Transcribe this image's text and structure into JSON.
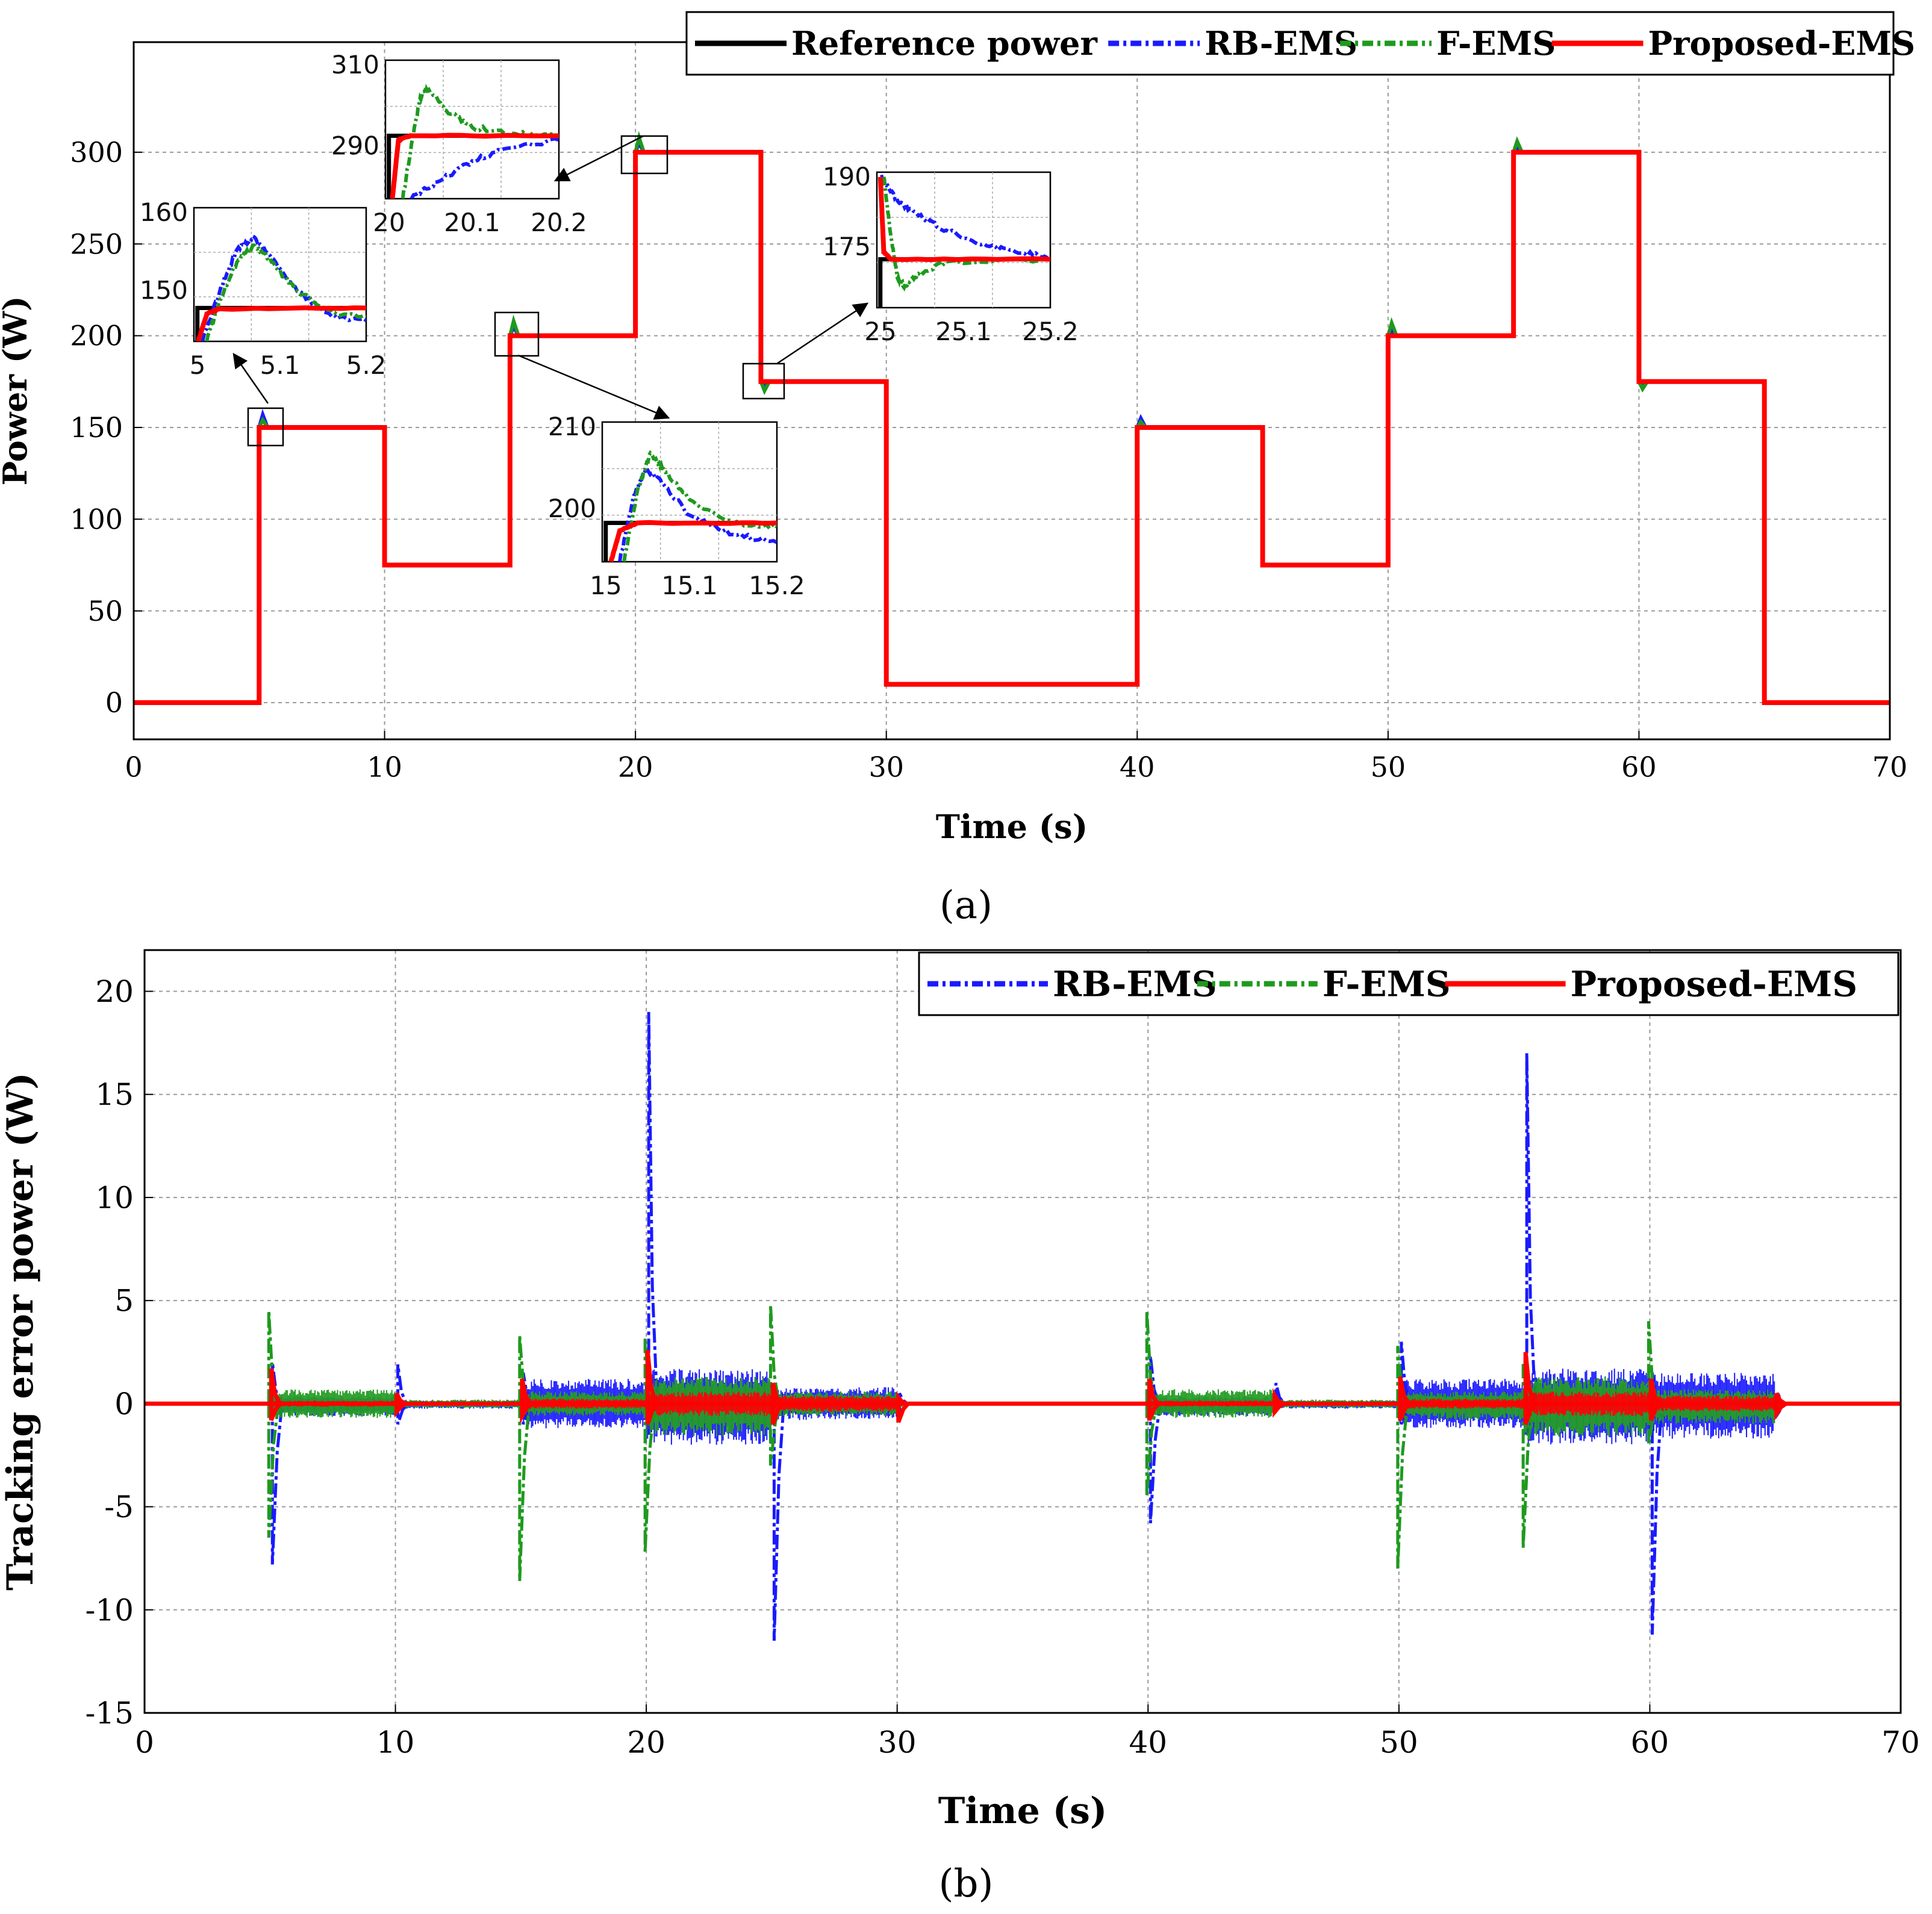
{
  "chart_data": [
    {
      "panel": "a",
      "type": "line",
      "caption": "(a)",
      "xlabel": "Time (s)",
      "ylabel": "Power (W)",
      "xlim": [
        0,
        70
      ],
      "ylim": [
        -20,
        360
      ],
      "xticks": [
        0,
        10,
        20,
        30,
        40,
        50,
        60,
        70
      ],
      "yticks": [
        0,
        50,
        100,
        150,
        200,
        250,
        300
      ],
      "grid": true,
      "legend_position": "top-right",
      "reference": {
        "name": "Reference power",
        "color": "#000000",
        "steps": [
          [
            0,
            0
          ],
          [
            5,
            150
          ],
          [
            10,
            75
          ],
          [
            15,
            200
          ],
          [
            20,
            300
          ],
          [
            25,
            175
          ],
          [
            30,
            10
          ],
          [
            40,
            150
          ],
          [
            45,
            75
          ],
          [
            50,
            200
          ],
          [
            55,
            300
          ],
          [
            60,
            175
          ],
          [
            65,
            0
          ],
          [
            70,
            0
          ]
        ]
      },
      "series": [
        {
          "name": "RB-EMS",
          "color": "#1a1aff",
          "style": "dash-dot",
          "overshoots": [
            [
              5,
              157
            ],
            [
              15,
              205
            ],
            [
              20,
              305
            ],
            [
              25,
              172
            ],
            [
              40,
              155
            ],
            [
              50,
              203
            ],
            [
              55,
              302
            ],
            [
              60,
              172
            ]
          ]
        },
        {
          "name": "F-EMS",
          "color": "#1e9a1e",
          "style": "dash-dot",
          "overshoots": [
            [
              5,
              154
            ],
            [
              15,
              208
            ],
            [
              20,
              308
            ],
            [
              25,
              170
            ],
            [
              40,
              153
            ],
            [
              50,
              207
            ],
            [
              55,
              306
            ],
            [
              60,
              171
            ]
          ]
        },
        {
          "name": "Proposed-EMS",
          "color": "#ff0000",
          "style": "solid"
        }
      ],
      "insets": [
        {
          "name": "zoom-5s",
          "xticks": [
            "5",
            "5.1",
            "5.2"
          ],
          "yticks": [
            "160",
            "150"
          ],
          "xlim": [
            5,
            5.2
          ],
          "ylim": [
            146,
            162
          ],
          "ref": 150,
          "rb": [
            [
              5.01,
              146
            ],
            [
              5.03,
              152
            ],
            [
              5.05,
              157
            ],
            [
              5.07,
              158.5
            ],
            [
              5.09,
              156
            ],
            [
              5.12,
              152
            ],
            [
              5.16,
              149
            ],
            [
              5.2,
              148.5
            ]
          ],
          "f": [
            [
              5.015,
              146
            ],
            [
              5.03,
              151
            ],
            [
              5.05,
              155.5
            ],
            [
              5.07,
              157.5
            ],
            [
              5.09,
              155.5
            ],
            [
              5.12,
              152
            ],
            [
              5.16,
              149.5
            ],
            [
              5.2,
              149
            ]
          ],
          "prop": [
            [
              5.005,
              146
            ],
            [
              5.015,
              149.3
            ],
            [
              5.03,
              149.9
            ],
            [
              5.2,
              150
            ]
          ]
        },
        {
          "name": "zoom-20s",
          "xticks": [
            "20",
            "20.1",
            "20.2"
          ],
          "yticks": [
            "310",
            "290"
          ],
          "xlim": [
            20,
            20.2
          ],
          "ylim": [
            285,
            318
          ],
          "ref": 300,
          "rb": [
            [
              20.03,
              285
            ],
            [
              20.06,
              289
            ],
            [
              20.1,
              294
            ],
            [
              20.14,
              297
            ],
            [
              20.2,
              299
            ]
          ],
          "f": [
            [
              20.02,
              285
            ],
            [
              20.03,
              298
            ],
            [
              20.04,
              309
            ],
            [
              20.05,
              311
            ],
            [
              20.07,
              306
            ],
            [
              20.1,
              302
            ],
            [
              20.15,
              300.5
            ],
            [
              20.2,
              300
            ]
          ],
          "prop": [
            [
              20.008,
              285
            ],
            [
              20.015,
              299
            ],
            [
              20.03,
              300
            ],
            [
              20.2,
              300
            ]
          ]
        },
        {
          "name": "zoom-15s",
          "xticks": [
            "15",
            "15.1",
            "15.2"
          ],
          "yticks": [
            "210",
            "200"
          ],
          "xlim": [
            15,
            15.2
          ],
          "ylim": [
            195,
            213
          ],
          "ref": 200,
          "rb": [
            [
              15.02,
              195
            ],
            [
              15.035,
              203
            ],
            [
              15.05,
              207
            ],
            [
              15.07,
              205
            ],
            [
              15.1,
              201
            ],
            [
              15.15,
              198.5
            ],
            [
              15.2,
              197.5
            ]
          ],
          "f": [
            [
              15.025,
              195
            ],
            [
              15.04,
              204
            ],
            [
              15.055,
              209
            ],
            [
              15.07,
              207
            ],
            [
              15.1,
              203
            ],
            [
              15.15,
              200
            ],
            [
              15.2,
              199.5
            ]
          ],
          "prop": [
            [
              15.01,
              195
            ],
            [
              15.02,
              199
            ],
            [
              15.04,
              200
            ],
            [
              15.2,
              200
            ]
          ]
        },
        {
          "name": "zoom-25s",
          "xticks": [
            "25",
            "25.1",
            "25.2"
          ],
          "yticks": [
            "190",
            "175"
          ],
          "xlim": [
            25,
            25.25
          ],
          "ylim": [
            165,
            193
          ],
          "ref": 175,
          "rb": [
            [
              25.005,
              192
            ],
            [
              25.03,
              187
            ],
            [
              25.06,
              184
            ],
            [
              25.1,
              181
            ],
            [
              25.15,
              178
            ],
            [
              25.2,
              176.5
            ],
            [
              25.25,
              175.5
            ]
          ],
          "f": [
            [
              25.01,
              192
            ],
            [
              25.02,
              180
            ],
            [
              25.03,
              171
            ],
            [
              25.04,
              169.5
            ],
            [
              25.06,
              172
            ],
            [
              25.1,
              174.5
            ],
            [
              25.25,
              175
            ]
          ],
          "prop": [
            [
              25.005,
              192
            ],
            [
              25.01,
              176.5
            ],
            [
              25.02,
              175
            ],
            [
              25.25,
              175
            ]
          ]
        }
      ]
    },
    {
      "panel": "b",
      "type": "line",
      "caption": "(b)",
      "xlabel": "Time (s)",
      "ylabel": "Tracking error power (W)",
      "xlim": [
        0,
        70
      ],
      "ylim": [
        -15,
        22
      ],
      "xticks": [
        0,
        10,
        20,
        30,
        40,
        50,
        60,
        70
      ],
      "yticks": [
        20,
        15,
        10,
        5,
        0,
        -5,
        -10,
        -15
      ],
      "grid": true,
      "legend_position": "top-right",
      "transitions": [
        5,
        10,
        15,
        20,
        25,
        30,
        40,
        45,
        50,
        55,
        60,
        65
      ],
      "series": [
        {
          "name": "RB-EMS",
          "color": "#1a1aff",
          "style": "dash-dot",
          "spikes": [
            [
              5,
              2,
              -7.8
            ],
            [
              10,
              1.9,
              -1
            ],
            [
              15,
              1.5,
              -1
            ],
            [
              20,
              19,
              -1.5
            ],
            [
              25,
              1,
              -11.5
            ],
            [
              30,
              0.5,
              -0.6
            ],
            [
              40,
              2.3,
              -5.8
            ],
            [
              45,
              1,
              -0.3
            ],
            [
              50,
              3,
              -1
            ],
            [
              55,
              17,
              -1.5
            ],
            [
              60,
              1.5,
              -11.2
            ],
            [
              65,
              0.5,
              -0.5
            ]
          ],
          "noise": [
            [
              5,
              10,
              0.35,
              -0.6
            ],
            [
              10,
              15,
              0.15,
              -0.25
            ],
            [
              15,
              20,
              1.2,
              -1.2
            ],
            [
              20,
              25,
              1.7,
              -2
            ],
            [
              25,
              30,
              0.8,
              -0.8
            ],
            [
              30,
              40,
              0.05,
              -0.05
            ],
            [
              40,
              45,
              0.35,
              -0.6
            ],
            [
              45,
              50,
              0.15,
              -0.25
            ],
            [
              50,
              55,
              1.2,
              -1.2
            ],
            [
              55,
              60,
              1.7,
              -2
            ],
            [
              60,
              65,
              1.5,
              -1.7
            ]
          ]
        },
        {
          "name": "F-EMS",
          "color": "#1e9a1e",
          "style": "dash-dot",
          "spikes": [
            [
              5,
              4.5,
              -6.5
            ],
            [
              10,
              0.3,
              -0.3
            ],
            [
              15,
              3.3,
              -8.6
            ],
            [
              20,
              3.2,
              -7.2
            ],
            [
              25,
              4.8,
              -3
            ],
            [
              30,
              0.5,
              -0.3
            ],
            [
              40,
              4.5,
              -4.5
            ],
            [
              45,
              0.3,
              -0.3
            ],
            [
              50,
              2.8,
              -8
            ],
            [
              55,
              2,
              -7
            ],
            [
              60,
              4,
              -2
            ],
            [
              65,
              0.2,
              -0.2
            ]
          ],
          "noise": [
            [
              5,
              10,
              0.7,
              -0.7
            ],
            [
              10,
              15,
              0.2,
              -0.2
            ],
            [
              15,
              20,
              0.6,
              -0.6
            ],
            [
              20,
              25,
              1.3,
              -1.6
            ],
            [
              25,
              30,
              0.6,
              -0.6
            ],
            [
              30,
              40,
              0.03,
              -0.03
            ],
            [
              40,
              45,
              0.7,
              -0.7
            ],
            [
              45,
              50,
              0.2,
              -0.2
            ],
            [
              50,
              55,
              0.6,
              -0.8
            ],
            [
              55,
              60,
              1.3,
              -1.6
            ],
            [
              60,
              65,
              0.7,
              -1
            ]
          ]
        },
        {
          "name": "Proposed-EMS",
          "color": "#ff0000",
          "style": "solid",
          "spikes": [
            [
              5,
              1.7,
              -0.8
            ],
            [
              10,
              0.5,
              -0.4
            ],
            [
              15,
              1.2,
              -0.6
            ],
            [
              20,
              2.6,
              -1
            ],
            [
              25,
              1,
              -1
            ],
            [
              30,
              0.3,
              -0.9
            ],
            [
              40,
              1.2,
              -0.8
            ],
            [
              45,
              0.4,
              -0.4
            ],
            [
              50,
              1.3,
              -0.8
            ],
            [
              55,
              2.5,
              -1
            ],
            [
              60,
              1.2,
              -0.8
            ],
            [
              65,
              0.5,
              -0.5
            ]
          ],
          "noise": [
            [
              5,
              10,
              0.15,
              -0.15
            ],
            [
              10,
              15,
              0.08,
              -0.08
            ],
            [
              15,
              20,
              0.25,
              -0.25
            ],
            [
              20,
              25,
              0.6,
              -0.6
            ],
            [
              25,
              30,
              0.4,
              -0.4
            ],
            [
              30,
              40,
              0.02,
              -0.02
            ],
            [
              40,
              45,
              0.15,
              -0.15
            ],
            [
              45,
              50,
              0.1,
              -0.1
            ],
            [
              50,
              55,
              0.25,
              -0.25
            ],
            [
              55,
              60,
              0.6,
              -0.6
            ],
            [
              60,
              65,
              0.4,
              -0.4
            ]
          ]
        }
      ]
    }
  ]
}
